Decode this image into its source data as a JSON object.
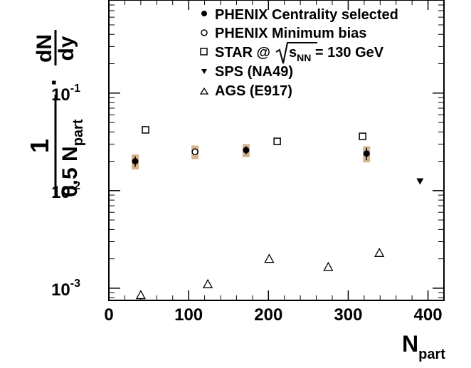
{
  "chart_data": {
    "type": "scatter",
    "ylabel": {
      "fraction_num": "1",
      "fraction_den_main": "0.5 N",
      "fraction_den_sub": "part",
      "dot": "·",
      "deriv_num": "dN",
      "deriv_den": "dy"
    },
    "xlabel": {
      "main": "N",
      "sub": "part"
    },
    "xlim": [
      0,
      420
    ],
    "ylim": [
      0.00075,
      0.9
    ],
    "yscale": "log",
    "grid": false,
    "legend_placement": "top-right",
    "x_ticks": [
      0,
      100,
      200,
      300,
      400
    ],
    "x_tick_labels": [
      "0",
      "100",
      "200",
      "300",
      "400"
    ],
    "y_ticks": [
      0.001,
      0.01,
      0.1
    ],
    "y_tick_labels": [
      {
        "base": "10",
        "exp": "-3"
      },
      {
        "base": "10",
        "exp": "-2"
      },
      {
        "base": "10",
        "exp": "-1"
      }
    ],
    "series": [
      {
        "name": "PHENIX Centrality selected",
        "marker": "filled-circle",
        "color": "#000000",
        "systematic_band_color": "#d4b48c",
        "points": [
          {
            "x": 33,
            "y": 0.02,
            "err": 0.0025,
            "sys": 0.0035
          },
          {
            "x": 172,
            "y": 0.026,
            "err": 0.0025,
            "sys": 0.004
          },
          {
            "x": 323,
            "y": 0.024,
            "err": 0.0035,
            "sys": 0.0045
          }
        ]
      },
      {
        "name": "PHENIX Minimum bias",
        "marker": "open-circle",
        "color": "#000000",
        "systematic_band_color": "#d4b48c",
        "points": [
          {
            "x": 108,
            "y": 0.025,
            "err": 0.0,
            "sys": 0.004
          }
        ]
      },
      {
        "name_parts": {
          "pre": "STAR @",
          "sqrt_s": "s",
          "sqrt_sub": "NN",
          "post": " = 130 GeV"
        },
        "marker": "open-square",
        "color": "#000000",
        "points": [
          {
            "x": 46,
            "y": 0.042
          },
          {
            "x": 211,
            "y": 0.032
          },
          {
            "x": 318,
            "y": 0.036
          }
        ]
      },
      {
        "name": "SPS (NA49)",
        "marker": "filled-triangle-down",
        "color": "#000000",
        "points": [
          {
            "x": 390,
            "y": 0.0125
          }
        ]
      },
      {
        "name": "AGS (E917)",
        "marker": "open-triangle-up",
        "color": "#000000",
        "points": [
          {
            "x": 40,
            "y": 0.00085
          },
          {
            "x": 124,
            "y": 0.0011
          },
          {
            "x": 201,
            "y": 0.002
          },
          {
            "x": 275,
            "y": 0.00165
          },
          {
            "x": 339,
            "y": 0.0023
          }
        ]
      }
    ]
  }
}
